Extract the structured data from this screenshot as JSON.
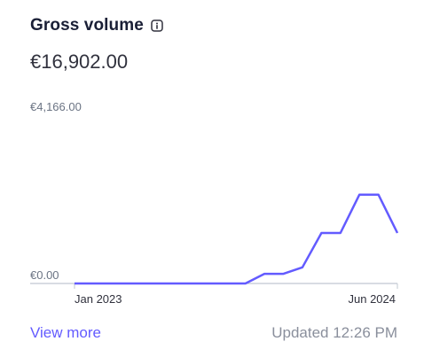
{
  "card": {
    "title": "Gross volume",
    "amount": "€16,902.00",
    "view_more": "View more",
    "updated": "Updated 12:26 PM"
  },
  "colors": {
    "line": "#635bff",
    "axis": "#c0c8d2"
  },
  "icons": {
    "info": "info-icon"
  },
  "chart_data": {
    "type": "line",
    "y_tick_labels": [
      "€4,166.00",
      "€0.00"
    ],
    "x_tick_labels": [
      "Jan 2023",
      "Jun 2024"
    ],
    "ylim": [
      0,
      4166
    ],
    "series": [
      {
        "values": [
          0,
          0,
          0,
          0,
          0,
          0,
          0,
          0,
          0,
          0,
          240,
          240,
          400,
          1250,
          1250,
          2200,
          2200,
          1250
        ]
      }
    ]
  }
}
